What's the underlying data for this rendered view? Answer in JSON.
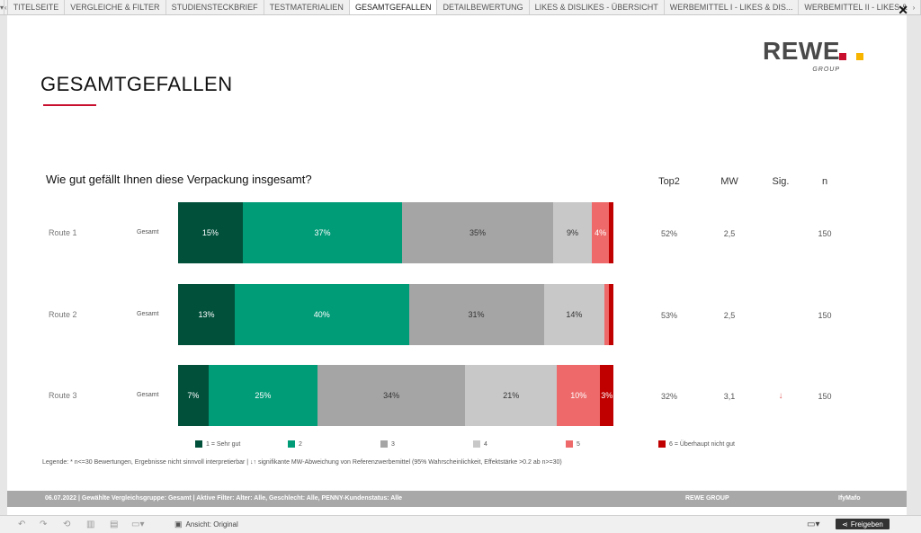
{
  "tabs": [
    "TITELSEITE",
    "VERGLEICHE & FILTER",
    "STUDIENSTECKBRIEF",
    "TESTMATERIALIEN",
    "GESAMTGEFALLEN",
    "DETAILBEWERTUNG",
    "LIKES & DISLIKES - ÜBERSICHT",
    "WERBEMITTEL I - LIKES & DIS...",
    "WERBEMITTEL II - LIKES & DI...",
    "WERE"
  ],
  "active_tab": "GESAMTGEFALLEN",
  "logo": {
    "text": "REWE",
    "sub": "GROUP",
    "colors": [
      "#c8102e",
      "#f7b500"
    ]
  },
  "page_title": "GESAMTGEFALLEN",
  "question": "Wie gut gefällt Ihnen diese Verpackung insgesamt?",
  "col_heads": {
    "top2": "Top2",
    "mw": "MW",
    "sig": "Sig.",
    "n": "n"
  },
  "colors": [
    "#00503a",
    "#009b77",
    "#a5a5a5",
    "#c8c8c8",
    "#ee6a6a",
    "#c00000"
  ],
  "chart_data": {
    "type": "bar",
    "stacked": true,
    "orientation": "horizontal",
    "categories": [
      "Route 1",
      "Route 2",
      "Route 3"
    ],
    "series": [
      {
        "name": "1 = Sehr gut",
        "values": [
          15,
          13,
          7
        ]
      },
      {
        "name": "2",
        "values": [
          37,
          40,
          25
        ]
      },
      {
        "name": "3",
        "values": [
          35,
          31,
          34
        ]
      },
      {
        "name": "4",
        "values": [
          9,
          14,
          21
        ]
      },
      {
        "name": "5",
        "values": [
          4,
          1,
          10
        ]
      },
      {
        "name": "6 = Überhaupt nicht gut",
        "values": [
          1,
          1,
          3
        ]
      }
    ]
  },
  "rows": [
    {
      "route": "Route 1",
      "group": "Gesamt",
      "labels": [
        "15%",
        "37%",
        "35%",
        "9%",
        "4%",
        ""
      ],
      "top2": "52%",
      "mw": "2,5",
      "sig": "",
      "n": "150"
    },
    {
      "route": "Route 2",
      "group": "Gesamt",
      "labels": [
        "13%",
        "40%",
        "31%",
        "14%",
        "",
        ""
      ],
      "top2": "53%",
      "mw": "2,5",
      "sig": "",
      "n": "150"
    },
    {
      "route": "Route 3",
      "group": "Gesamt",
      "labels": [
        "7%",
        "25%",
        "34%",
        "21%",
        "10%",
        "3%"
      ],
      "top2": "32%",
      "mw": "3,1",
      "sig": "↓",
      "n": "150"
    }
  ],
  "legend_note": "Legende: * n<=30 Bewertungen, Ergebnisse nicht sinnvoll interpretierbar | ↓↑ signifikante MW-Abweichung von Referenzwerbemittel (95% Wahrscheinlichkeit, Effektstärke >0.2 ab n>=30)",
  "footer": {
    "info": "06.07.2022 | Gewählte Vergleichsgruppe: Gesamt | Aktive Filter: Alter: Alle, Geschlecht: Alle, PENNY-Kundenstatus: Alle",
    "brand": "REWE GROUP",
    "vendor": "IfyMafo"
  },
  "toolbar": {
    "view_label": "Ansicht: Original",
    "share_label": "Freigeben"
  }
}
